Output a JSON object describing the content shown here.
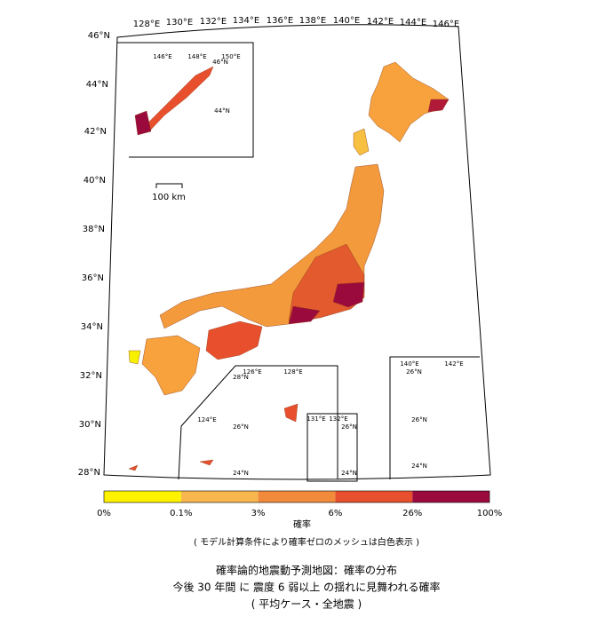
{
  "map": {
    "lon_labels": [
      "128°E",
      "130°E",
      "132°E",
      "134°E",
      "136°E",
      "138°E",
      "140°E",
      "142°E",
      "144°E",
      "146°E"
    ],
    "lat_labels": [
      "46°N",
      "44°N",
      "42°N",
      "40°N",
      "38°N",
      "36°N",
      "34°N",
      "32°N",
      "30°N",
      "28°N"
    ],
    "scale_label": "100 km",
    "inset_north": {
      "labels": [
        "146°E",
        "148°E",
        "150°E",
        "46°N",
        "44°N"
      ]
    },
    "inset_south": {
      "labels": [
        "126°E",
        "128°E",
        "28°N",
        "26°N",
        "124°E",
        "24°N"
      ]
    },
    "inset_daito": {
      "labels": [
        "131°E",
        "132°E",
        "26°N",
        "24°N"
      ]
    },
    "inset_ogasawara": {
      "labels": [
        "140°E",
        "142°E",
        "26°N",
        "26°N",
        "24°N"
      ]
    }
  },
  "legend": {
    "title": "確率",
    "labels": [
      "0%",
      "0.1%",
      "3%",
      "6%",
      "26%",
      "100%"
    ],
    "colors": [
      "#fff200",
      "#f7b74e",
      "#f28a3c",
      "#e8502d",
      "#9b0a3c"
    ]
  },
  "note": "( モデル計算条件により確率ゼロのメッシュは白色表示 )",
  "title": {
    "line1": "確率論的地震動予測地図：確率の分布",
    "line2": "今後 30 年間 に 震度 6 弱以上 の揺れに見舞われる確率",
    "line3": "( 平均ケース・全地震 )"
  }
}
